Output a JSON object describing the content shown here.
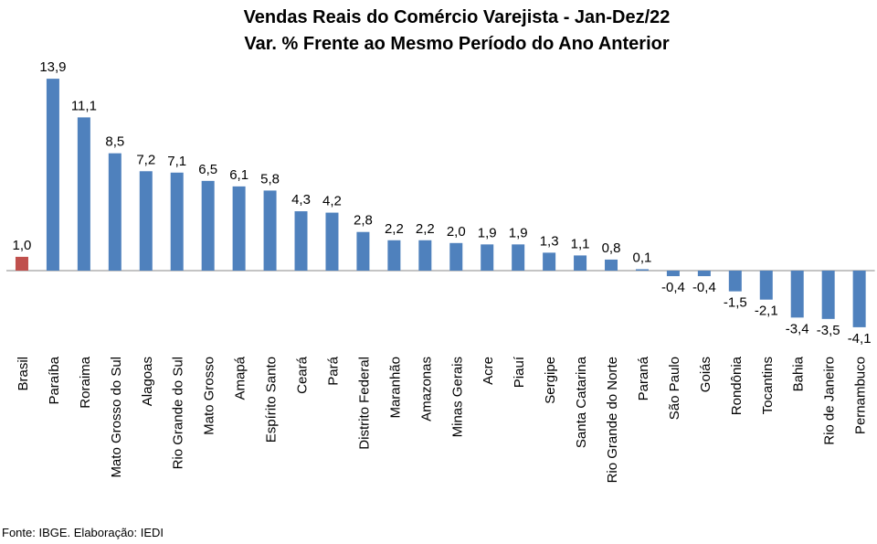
{
  "chart_data": {
    "type": "bar",
    "title": "Vendas Reais do Comércio Varejista - Jan-Dez/22",
    "subtitle": "Var. % Frente ao Mesmo Período do Ano Anterior",
    "categories": [
      "Brasil",
      "Paraíba",
      "Roraima",
      "Mato Grosso do Sul",
      "Alagoas",
      "Rio Grande do Sul",
      "Mato Grosso",
      "Amapá",
      "Espírito Santo",
      "Ceará",
      "Pará",
      "Distrito Federal",
      "Maranhão",
      "Amazonas",
      "Minas Gerais",
      "Acre",
      "Piauí",
      "Sergipe",
      "Santa Catarina",
      "Rio Grande do Norte",
      "Paraná",
      "São Paulo",
      "Goiás",
      "Rondônia",
      "Tocantins",
      "Bahia",
      "Rio de Janeiro",
      "Pernambuco"
    ],
    "values": [
      1.0,
      13.9,
      11.1,
      8.5,
      7.2,
      7.1,
      6.5,
      6.1,
      5.8,
      4.3,
      4.2,
      2.8,
      2.2,
      2.2,
      2.0,
      1.9,
      1.9,
      1.3,
      1.1,
      0.8,
      0.1,
      -0.4,
      -0.4,
      -1.5,
      -2.1,
      -3.4,
      -3.5,
      -4.1
    ],
    "value_labels": [
      "1,0",
      "13,9",
      "11,1",
      "8,5",
      "7,2",
      "7,1",
      "6,5",
      "6,1",
      "5,8",
      "4,3",
      "4,2",
      "2,8",
      "2,2",
      "2,2",
      "2,0",
      "1,9",
      "1,9",
      "1,3",
      "1,1",
      "0,8",
      "0,1",
      "-0,4",
      "-0,4",
      "-1,5",
      "-2,1",
      "-3,4",
      "-3,5",
      "-4,1"
    ],
    "colors": {
      "default": "#4f81bd",
      "highlight": "#c0504d"
    },
    "highlight_category": "Brasil",
    "grid": false,
    "legend": "none"
  },
  "source": "Fonte: IBGE. Elaboração: IEDI"
}
